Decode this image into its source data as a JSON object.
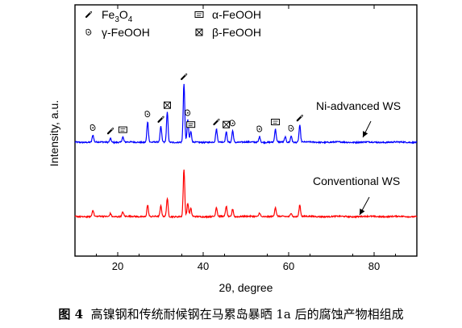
{
  "chart_data": {
    "type": "line",
    "xlabel": "2θ, degree",
    "ylabel": "Intensity, a.u.",
    "xlim": [
      10,
      90
    ],
    "x_ticks": [
      20,
      40,
      60,
      80
    ],
    "y_ticks_shown": false,
    "legend": {
      "placement": "top-left",
      "entries": [
        {
          "symbol": "fe3o4",
          "name": "Fe3O4"
        },
        {
          "symbol": "alpha",
          "name": "α-FeOOH"
        },
        {
          "symbol": "gamma",
          "name": "γ-FeOOH"
        },
        {
          "symbol": "beta",
          "name": "β-FeOOH"
        }
      ]
    },
    "series": [
      {
        "name": "Ni-advanced WS",
        "color": "#0000ff",
        "baseline": 0.62,
        "noise": 0.05,
        "peaks": [
          {
            "x": 14.2,
            "h": 0.55
          },
          {
            "x": 18.3,
            "h": 0.3
          },
          {
            "x": 21.2,
            "h": 0.4
          },
          {
            "x": 27.0,
            "h": 1.6
          },
          {
            "x": 30.1,
            "h": 1.2
          },
          {
            "x": 31.6,
            "h": 2.3
          },
          {
            "x": 35.5,
            "h": 4.5
          },
          {
            "x": 36.4,
            "h": 1.7
          },
          {
            "x": 37.1,
            "h": 0.8
          },
          {
            "x": 43.1,
            "h": 1.0
          },
          {
            "x": 45.4,
            "h": 0.8
          },
          {
            "x": 46.9,
            "h": 0.9
          },
          {
            "x": 53.2,
            "h": 0.45
          },
          {
            "x": 56.9,
            "h": 1.0
          },
          {
            "x": 59.2,
            "h": 0.4
          },
          {
            "x": 60.6,
            "h": 0.5
          },
          {
            "x": 62.6,
            "h": 1.3
          }
        ],
        "annotation": "Ni-advanced WS"
      },
      {
        "name": "Conventional WS",
        "color": "#ff0000",
        "baseline": 0.0,
        "noise": 0.05,
        "peaks": [
          {
            "x": 14.2,
            "h": 0.5
          },
          {
            "x": 18.3,
            "h": 0.25
          },
          {
            "x": 21.2,
            "h": 0.35
          },
          {
            "x": 27.0,
            "h": 0.9
          },
          {
            "x": 30.1,
            "h": 0.8
          },
          {
            "x": 31.6,
            "h": 1.4
          },
          {
            "x": 35.5,
            "h": 3.6
          },
          {
            "x": 36.4,
            "h": 1.0
          },
          {
            "x": 37.1,
            "h": 0.6
          },
          {
            "x": 43.1,
            "h": 0.7
          },
          {
            "x": 45.4,
            "h": 0.8
          },
          {
            "x": 46.9,
            "h": 0.6
          },
          {
            "x": 53.2,
            "h": 0.3
          },
          {
            "x": 56.9,
            "h": 0.7
          },
          {
            "x": 60.6,
            "h": 0.3
          },
          {
            "x": 62.6,
            "h": 0.9
          }
        ],
        "annotation": "Conventional WS"
      }
    ],
    "peak_markers": [
      {
        "x": 14.2,
        "symbol": "gamma"
      },
      {
        "x": 18.3,
        "symbol": "fe3o4"
      },
      {
        "x": 21.2,
        "symbol": "alpha"
      },
      {
        "x": 27.0,
        "symbol": "gamma"
      },
      {
        "x": 30.1,
        "symbol": "fe3o4"
      },
      {
        "x": 31.6,
        "symbol": "beta"
      },
      {
        "x": 35.5,
        "symbol": "fe3o4"
      },
      {
        "x": 36.4,
        "symbol": "gamma"
      },
      {
        "x": 37.1,
        "symbol": "alpha"
      },
      {
        "x": 43.1,
        "symbol": "fe3o4"
      },
      {
        "x": 45.4,
        "symbol": "beta"
      },
      {
        "x": 46.9,
        "symbol": "gamma"
      },
      {
        "x": 53.2,
        "symbol": "gamma"
      },
      {
        "x": 56.9,
        "symbol": "alpha"
      },
      {
        "x": 60.6,
        "symbol": "gamma"
      },
      {
        "x": 62.6,
        "symbol": "fe3o4"
      }
    ]
  },
  "caption": {
    "label": "图 4",
    "text": "高镍钢和传统耐候钢在马累岛暴晒 1a 后的腐蚀产物相组成"
  }
}
